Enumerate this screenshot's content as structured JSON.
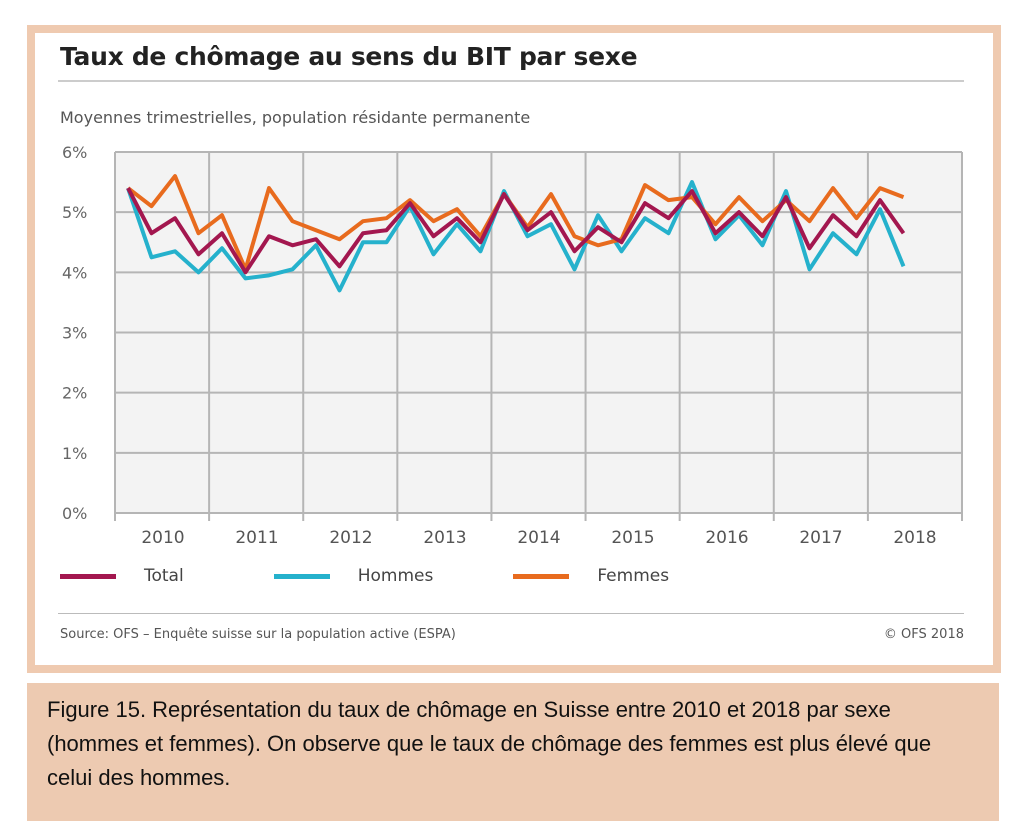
{
  "caption": "Figure 15. Représentation du taux de chômage en Suisse entre 2010 et 2018 par sexe (hommes et femmes). On observe que le taux de chômage des femmes est plus élevé que celui des hommes.",
  "source": "Source: OFS – Enquête suisse sur la population active (ESPA)",
  "copyright": "© OFS 2018",
  "colors": {
    "frame": "#efcab0",
    "caption_bg": "#edcab1"
  },
  "chart_data": {
    "type": "line",
    "title": "Taux de chômage au sens du BIT par sexe",
    "subtitle": "Moyennes trimestrielles, population résidante permanente",
    "xlabel": "",
    "ylabel": "",
    "ylim": [
      0,
      6
    ],
    "yticks": [
      "0%",
      "1%",
      "2%",
      "3%",
      "4%",
      "5%",
      "6%"
    ],
    "xticks": [
      "2010",
      "2011",
      "2012",
      "2013",
      "2014",
      "2015",
      "2016",
      "2017",
      "2018"
    ],
    "x_start": "2010 Q1",
    "x_end": "2018 Q2",
    "grid": true,
    "legend": "bottom",
    "series": [
      {
        "name": "Total",
        "color": "#a3174f",
        "values": [
          5.4,
          4.65,
          4.9,
          4.3,
          4.65,
          4.0,
          4.6,
          4.45,
          4.55,
          4.1,
          4.65,
          4.7,
          5.15,
          4.6,
          4.9,
          4.5,
          5.3,
          4.7,
          5.0,
          4.35,
          4.75,
          4.5,
          5.15,
          4.9,
          5.35,
          4.65,
          5.0,
          4.6,
          5.25,
          4.4,
          4.95,
          4.6,
          5.2,
          4.65
        ]
      },
      {
        "name": "Hommes",
        "color": "#25b1cc",
        "values": [
          5.4,
          4.25,
          4.35,
          4.0,
          4.4,
          3.9,
          3.95,
          4.05,
          4.45,
          3.7,
          4.5,
          4.5,
          5.1,
          4.3,
          4.8,
          4.35,
          5.35,
          4.6,
          4.8,
          4.05,
          4.95,
          4.35,
          4.9,
          4.65,
          5.5,
          4.55,
          4.95,
          4.45,
          5.35,
          4.05,
          4.65,
          4.3,
          5.05,
          4.1
        ]
      },
      {
        "name": "Femmes",
        "color": "#e86b1e",
        "values": [
          5.4,
          5.1,
          5.6,
          4.65,
          4.95,
          4.05,
          5.4,
          4.85,
          4.7,
          4.55,
          4.85,
          4.9,
          5.2,
          4.85,
          5.05,
          4.6,
          5.3,
          4.75,
          5.3,
          4.6,
          4.45,
          4.55,
          5.45,
          5.2,
          5.25,
          4.8,
          5.25,
          4.85,
          5.2,
          4.85,
          5.4,
          4.9,
          5.4,
          5.25
        ]
      }
    ]
  }
}
